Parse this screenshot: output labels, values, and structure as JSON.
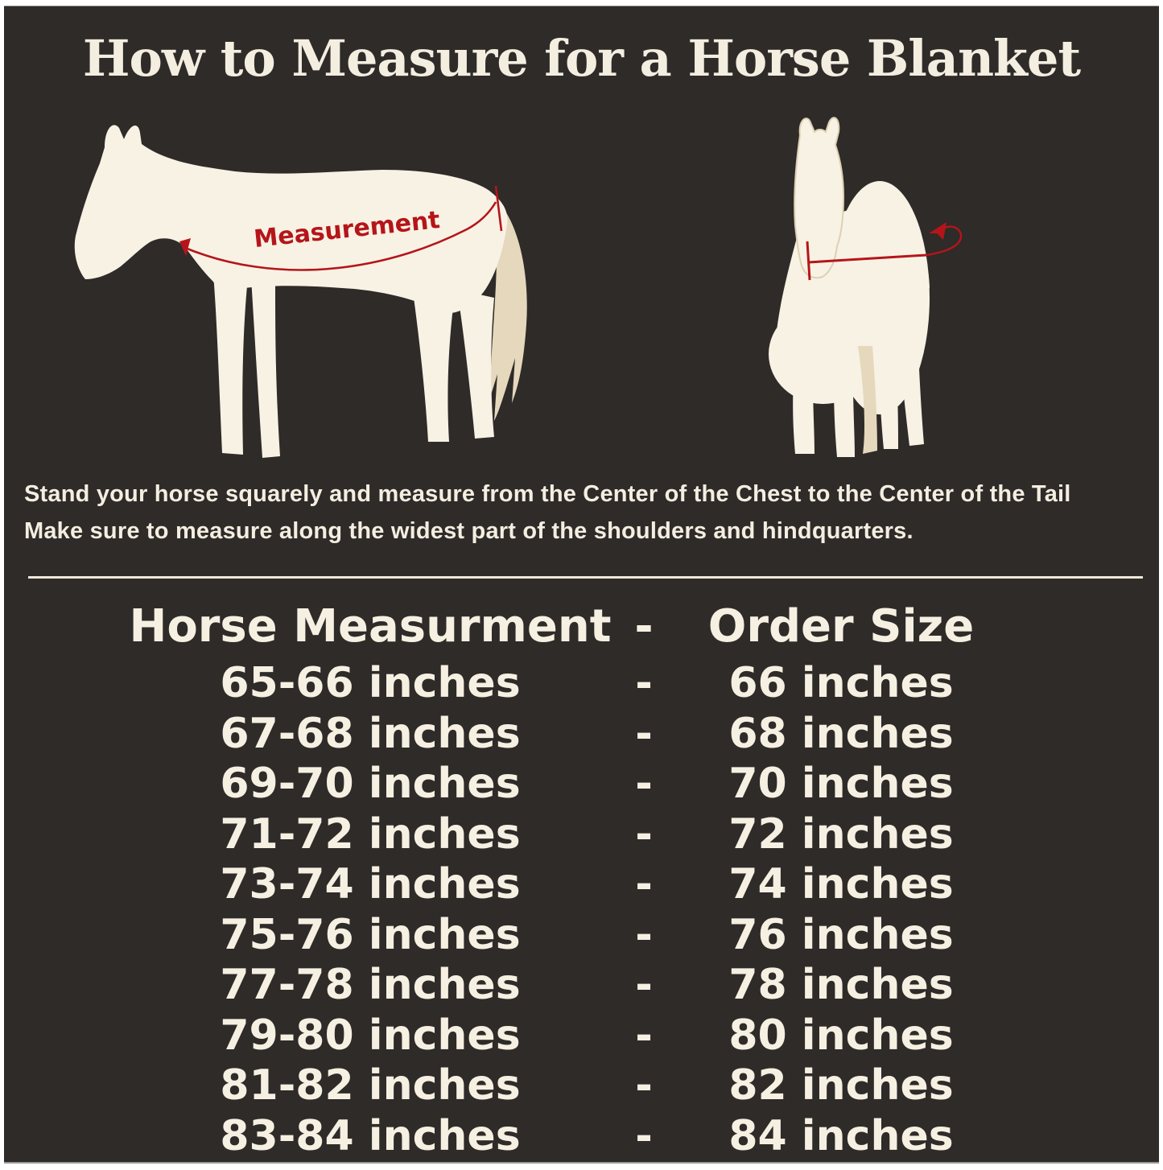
{
  "colors": {
    "background": "#2e2b29",
    "frame": "#ffffff",
    "text_cream": "#f4eee1",
    "horse_cream": "#f8f2e4",
    "shade_tan": "#e5d8bc",
    "accent_red": "#b5151a"
  },
  "title": "How to Measure for a Horse Blanket",
  "diagram": {
    "measurement_label": "Measurement"
  },
  "instructions": {
    "lines": [
      "Stand your horse squarely and measure from the Center of the Chest to the Center of the Tail",
      "Make sure to measure along the widest part of the shoulders and hindquarters."
    ]
  },
  "size_table": {
    "header": {
      "measurement": "Horse Measurment",
      "separator": "-",
      "size": "Order Size"
    },
    "separator": "-",
    "rows": [
      {
        "measurement": "65-66 inches",
        "size": "66 inches"
      },
      {
        "measurement": "67-68 inches",
        "size": "68 inches"
      },
      {
        "measurement": "69-70 inches",
        "size": "70 inches"
      },
      {
        "measurement": "71-72 inches",
        "size": "72 inches"
      },
      {
        "measurement": "73-74 inches",
        "size": "74 inches"
      },
      {
        "measurement": "75-76 inches",
        "size": "76 inches"
      },
      {
        "measurement": "77-78 inches",
        "size": "78 inches"
      },
      {
        "measurement": "79-80 inches",
        "size": "80 inches"
      },
      {
        "measurement": "81-82 inches",
        "size": "82 inches"
      },
      {
        "measurement": "83-84 inches",
        "size": "84 inches"
      }
    ]
  }
}
